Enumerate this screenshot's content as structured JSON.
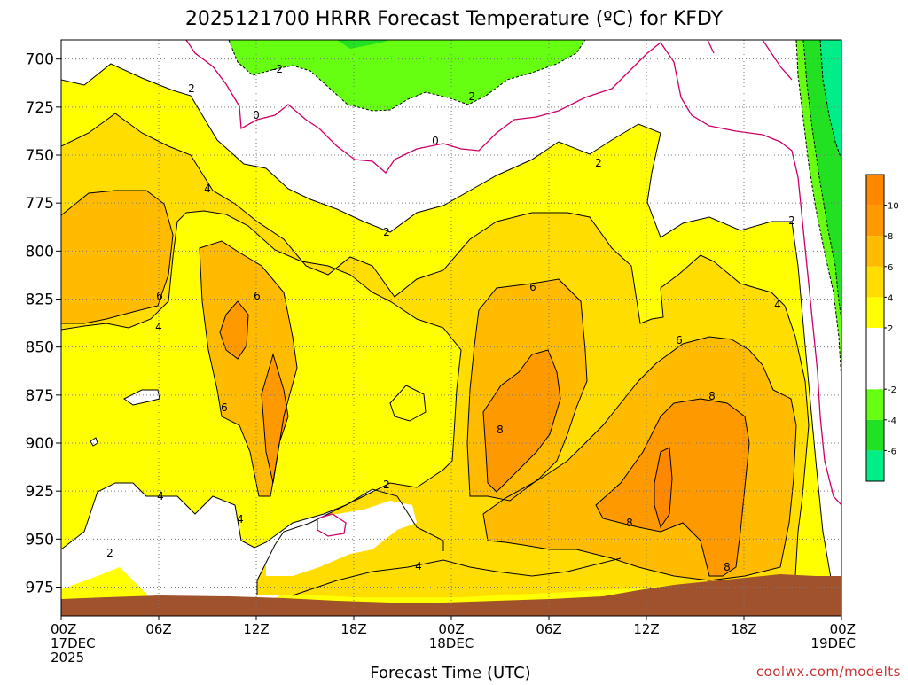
{
  "chart_data": {
    "type": "contour",
    "title": "2025121700 HRRR Forecast Temperature (ºC) for KFDY",
    "xlabel": "Forecast Time (UTC)",
    "ylabel": "",
    "credit": "coolwx.com/modelts",
    "x_range_hours": [
      0,
      48
    ],
    "y_range_hpa": [
      990,
      690
    ],
    "y_axis_inverted": true,
    "grid": true,
    "x_ticks": [
      {
        "hour": 0,
        "lines": [
          "00Z",
          "17DEC",
          "2025"
        ]
      },
      {
        "hour": 6,
        "lines": [
          "06Z"
        ]
      },
      {
        "hour": 12,
        "lines": [
          "12Z"
        ]
      },
      {
        "hour": 18,
        "lines": [
          "18Z"
        ]
      },
      {
        "hour": 24,
        "lines": [
          "00Z",
          "18DEC"
        ]
      },
      {
        "hour": 30,
        "lines": [
          "06Z"
        ]
      },
      {
        "hour": 36,
        "lines": [
          "12Z"
        ]
      },
      {
        "hour": 42,
        "lines": [
          "18Z"
        ]
      },
      {
        "hour": 48,
        "lines": [
          "00Z",
          "19DEC"
        ]
      }
    ],
    "y_ticks": [
      "700",
      "725",
      "750",
      "775",
      "800",
      "825",
      "850",
      "875",
      "900",
      "925",
      "950",
      "975"
    ],
    "colorbar": {
      "bands": [
        {
          "min": -8,
          "max": -6,
          "color": "#00ee88"
        },
        {
          "min": -6,
          "max": -4,
          "color": "#22e022"
        },
        {
          "min": -4,
          "max": -2,
          "color": "#66ff11"
        },
        {
          "min": -2,
          "max": 2,
          "color": "#ffffff"
        },
        {
          "min": 2,
          "max": 4,
          "color": "#ffff00"
        },
        {
          "min": 4,
          "max": 6,
          "color": "#ffdd00"
        },
        {
          "min": 6,
          "max": 8,
          "color": "#ffbb00"
        },
        {
          "min": 8,
          "max": 10,
          "color": "#ff9900"
        },
        {
          "min": 10,
          "max": 12,
          "color": "#ff8800"
        }
      ],
      "tick_labels": [
        "10",
        "8",
        "6",
        "4",
        "2",
        "-2",
        "-4",
        "-6"
      ]
    },
    "contour_labels": [
      "-2",
      "-2",
      "0",
      "0",
      "2",
      "2",
      "2",
      "2",
      "2",
      "2",
      "4",
      "4",
      "4",
      "4",
      "4",
      "4",
      "6",
      "6",
      "6",
      "6",
      "6",
      "8",
      "8",
      "8",
      "8"
    ],
    "terrain_color": "#a0522d"
  }
}
